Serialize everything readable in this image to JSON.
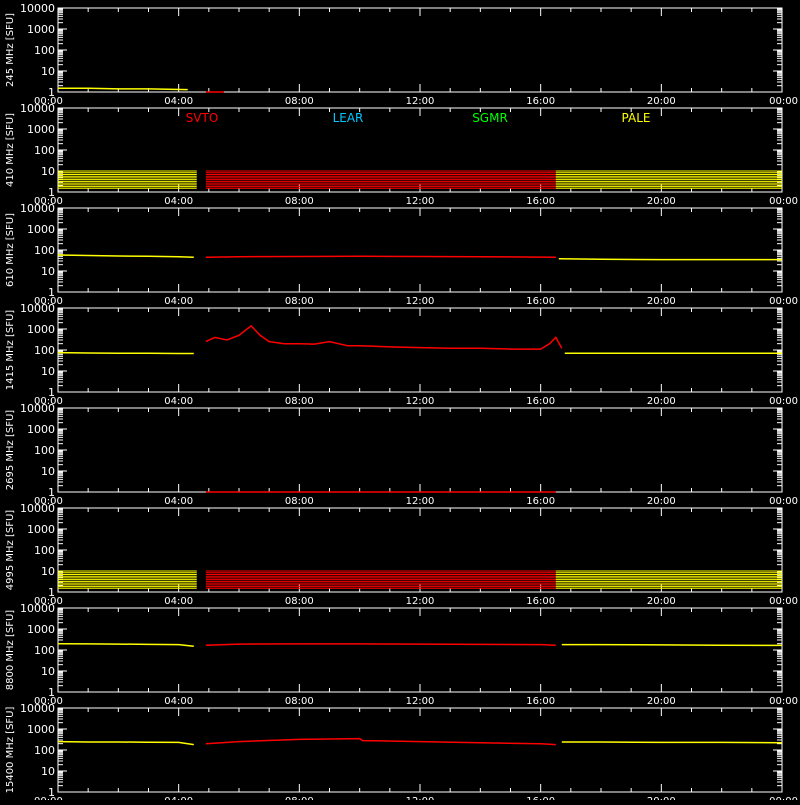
{
  "chart_data": {
    "type": "line",
    "ylabel_unit": "[SFU]",
    "x_ticks": [
      "00:00",
      "04:00",
      "08:00",
      "12:00",
      "16:00",
      "20:00",
      "00:00"
    ],
    "x_range_hours": [
      0,
      24
    ],
    "y_ticks": [
      "1",
      "10",
      "100",
      "1000",
      "10000"
    ],
    "y_range": [
      1,
      10000
    ],
    "y_scale": "log",
    "legend": [
      {
        "name": "SVTO",
        "color": "#ff0000"
      },
      {
        "name": "LEAR",
        "color": "#00c8ff"
      },
      {
        "name": "SGMR",
        "color": "#00ff00"
      },
      {
        "name": "PALE",
        "color": "#ffff00"
      }
    ],
    "stations": [
      {
        "name": "PALE",
        "color": "#ffff00",
        "hours": [
          0,
          4.6
        ]
      },
      {
        "name": "SVTO",
        "color": "#ff0000",
        "hours": [
          4.9,
          16.5
        ]
      },
      {
        "name": "PALE",
        "color": "#ffff00",
        "hours": [
          16.5,
          24
        ]
      }
    ],
    "panels": [
      {
        "freq_label": "245 MHz",
        "kind": "trace",
        "series": [
          {
            "name": "PALE",
            "color": "#ffff00",
            "points": [
              [
                0,
                1.5
              ],
              [
                1,
                1.5
              ],
              [
                2,
                1.4
              ],
              [
                3,
                1.4
              ],
              [
                4.3,
                1.3
              ]
            ]
          },
          {
            "name": "SVTO",
            "color": "#ff0000",
            "points": [
              [
                4.9,
                1.0
              ],
              [
                5.5,
                1.0
              ]
            ]
          }
        ]
      },
      {
        "freq_label": "410 MHz",
        "kind": "band",
        "band": [
          1.5,
          10
        ]
      },
      {
        "freq_label": "610 MHz",
        "kind": "trace",
        "series": [
          {
            "name": "PALE",
            "color": "#ffff00",
            "points": [
              [
                0,
                58
              ],
              [
                1,
                55
              ],
              [
                2,
                52
              ],
              [
                3,
                50
              ],
              [
                4,
                48
              ],
              [
                4.5,
                45
              ]
            ]
          },
          {
            "name": "SVTO",
            "color": "#ff0000",
            "points": [
              [
                4.9,
                45
              ],
              [
                6,
                48
              ],
              [
                8,
                49
              ],
              [
                10,
                50
              ],
              [
                12,
                49
              ],
              [
                14,
                48
              ],
              [
                16,
                46
              ],
              [
                16.5,
                45
              ]
            ]
          },
          {
            "name": "PALE",
            "color": "#ffff00",
            "points": [
              [
                16.6,
                38
              ],
              [
                18,
                36
              ],
              [
                20,
                35
              ],
              [
                22,
                35
              ],
              [
                24,
                35
              ]
            ]
          }
        ]
      },
      {
        "freq_label": "1415 MHz",
        "kind": "trace",
        "series": [
          {
            "name": "PALE",
            "color": "#ffff00",
            "points": [
              [
                0,
                75
              ],
              [
                1,
                72
              ],
              [
                2,
                70
              ],
              [
                3,
                70
              ],
              [
                4,
                68
              ],
              [
                4.5,
                68
              ]
            ]
          },
          {
            "name": "SVTO",
            "color": "#ff0000",
            "points": [
              [
                4.9,
                250
              ],
              [
                5.2,
                400
              ],
              [
                5.6,
                300
              ],
              [
                6,
                500
              ],
              [
                6.4,
                1400
              ],
              [
                6.7,
                500
              ],
              [
                7,
                250
              ],
              [
                7.5,
                200
              ],
              [
                8,
                200
              ],
              [
                8.5,
                190
              ],
              [
                9,
                250
              ],
              [
                9.3,
                200
              ],
              [
                9.6,
                160
              ],
              [
                10,
                160
              ],
              [
                10.5,
                150
              ],
              [
                11,
                140
              ],
              [
                12,
                130
              ],
              [
                13,
                120
              ],
              [
                14,
                120
              ],
              [
                15,
                110
              ],
              [
                16,
                110
              ],
              [
                16.3,
                200
              ],
              [
                16.5,
                400
              ],
              [
                16.7,
                120
              ]
            ]
          },
          {
            "name": "PALE",
            "color": "#ffff00",
            "points": [
              [
                16.8,
                70
              ],
              [
                18,
                70
              ],
              [
                20,
                70
              ],
              [
                22,
                70
              ],
              [
                24,
                70
              ]
            ]
          }
        ]
      },
      {
        "freq_label": "2695 MHz",
        "kind": "trace",
        "series": [
          {
            "name": "SVTO",
            "color": "#ff0000",
            "points": [
              [
                4.9,
                1.0
              ],
              [
                16.5,
                1.0
              ]
            ]
          }
        ]
      },
      {
        "freq_label": "4995 MHz",
        "kind": "band",
        "band": [
          1.5,
          10
        ]
      },
      {
        "freq_label": "8800 MHz",
        "kind": "trace",
        "series": [
          {
            "name": "PALE",
            "color": "#ffff00",
            "points": [
              [
                0,
                200
              ],
              [
                1,
                195
              ],
              [
                2,
                190
              ],
              [
                3,
                185
              ],
              [
                4,
                180
              ],
              [
                4.5,
                150
              ]
            ]
          },
          {
            "name": "SVTO",
            "color": "#ff0000",
            "points": [
              [
                4.9,
                170
              ],
              [
                6,
                190
              ],
              [
                8,
                195
              ],
              [
                10,
                195
              ],
              [
                12,
                190
              ],
              [
                14,
                185
              ],
              [
                16,
                180
              ],
              [
                16.5,
                170
              ]
            ]
          },
          {
            "name": "PALE",
            "color": "#ffff00",
            "points": [
              [
                16.7,
                180
              ],
              [
                18,
                180
              ],
              [
                20,
                175
              ],
              [
                22,
                170
              ],
              [
                24,
                165
              ]
            ]
          }
        ]
      },
      {
        "freq_label": "15400 MHz",
        "kind": "trace",
        "series": [
          {
            "name": "PALE",
            "color": "#ffff00",
            "points": [
              [
                0,
                250
              ],
              [
                1,
                240
              ],
              [
                2,
                240
              ],
              [
                3,
                235
              ],
              [
                4,
                230
              ],
              [
                4.5,
                180
              ]
            ]
          },
          {
            "name": "SVTO",
            "color": "#ff0000",
            "points": [
              [
                4.9,
                200
              ],
              [
                6,
                250
              ],
              [
                8,
                320
              ],
              [
                10,
                350
              ],
              [
                10.1,
                280
              ],
              [
                12,
                250
              ],
              [
                14,
                220
              ],
              [
                16,
                200
              ],
              [
                16.5,
                180
              ]
            ]
          },
          {
            "name": "PALE",
            "color": "#ffff00",
            "points": [
              [
                16.7,
                240
              ],
              [
                18,
                240
              ],
              [
                20,
                230
              ],
              [
                22,
                230
              ],
              [
                24,
                220
              ]
            ]
          }
        ]
      }
    ]
  }
}
